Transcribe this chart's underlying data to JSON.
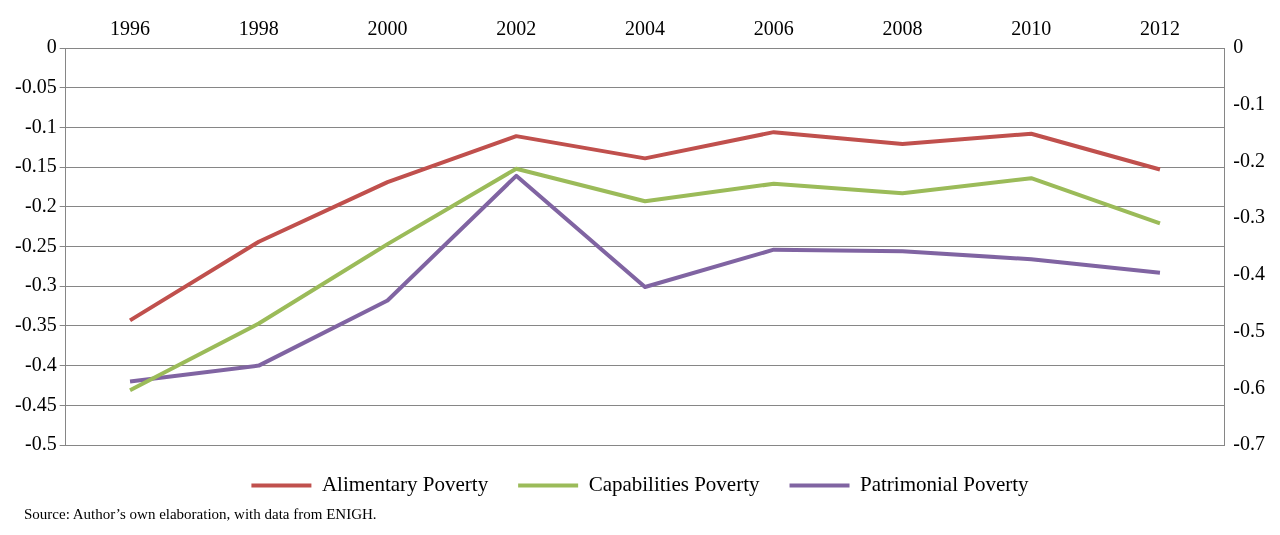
{
  "chart_data": {
    "type": "line",
    "categories": [
      "1996",
      "1998",
      "2000",
      "2002",
      "2004",
      "2006",
      "2008",
      "2010",
      "2012"
    ],
    "series": [
      {
        "name": "Alimentary Poverty",
        "color": "#c0504d",
        "values": [
          -0.343,
          -0.244,
          -0.169,
          -0.111,
          -0.139,
          -0.106,
          -0.121,
          -0.108,
          -0.153
        ]
      },
      {
        "name": "Capabilities Poverty",
        "color": "#9bbb59",
        "values": [
          -0.431,
          -0.347,
          -0.247,
          -0.152,
          -0.193,
          -0.171,
          -0.183,
          -0.164,
          -0.221
        ]
      },
      {
        "name": "Patrimonial Poverty",
        "color": "#8064a2",
        "values": [
          -0.42,
          -0.4,
          -0.318,
          -0.161,
          -0.301,
          -0.254,
          -0.256,
          -0.266,
          -0.283
        ]
      }
    ],
    "ylim": [
      -0.5,
      0
    ],
    "yticks": [
      -0.5,
      -0.45,
      -0.4,
      -0.35,
      -0.3,
      -0.25,
      -0.2,
      -0.15,
      -0.1,
      -0.05,
      0
    ],
    "y2lim": [
      -0.7,
      0
    ],
    "y2ticks": [
      -0.7,
      -0.6,
      -0.5,
      -0.4,
      -0.3,
      -0.2,
      -0.1,
      0
    ],
    "grid": "y",
    "legend": "bottom",
    "marker": "none",
    "line_style": "solid",
    "annotations": [
      "Source: Author’s own elaboration, with data from ENIGH."
    ]
  }
}
